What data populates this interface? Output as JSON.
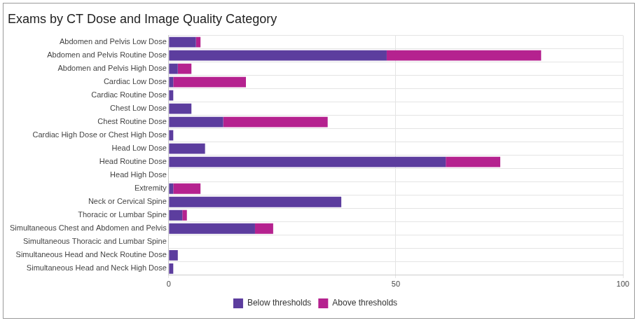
{
  "chart_data": {
    "type": "bar",
    "title": "Exams by CT Dose and Image Quality Category",
    "orientation": "horizontal",
    "stacked": true,
    "grid": true,
    "legend": "bottom",
    "categories": [
      "Abdomen and Pelvis Low Dose",
      "Abdomen and Pelvis Routine Dose",
      "Abdomen and Pelvis High Dose",
      "Cardiac Low Dose",
      "Cardiac Routine Dose",
      "Chest Low Dose",
      "Chest Routine Dose",
      "Cardiac High Dose or Chest High Dose",
      "Head Low Dose",
      "Head Routine Dose",
      "Head High Dose",
      "Extremity",
      "Neck or Cervical Spine",
      "Thoracic or Lumbar Spine",
      "Simultaneous Chest and Abdomen and Pelvis",
      "Simultaneous Thoracic and Lumbar Spine",
      "Simultaneous Head and Neck Routine Dose",
      "Simultaneous Head and Neck High Dose"
    ],
    "series": [
      {
        "name": "Below thresholds",
        "color": "#5c3d9e",
        "values": [
          6,
          48,
          2,
          1,
          1,
          5,
          12,
          1,
          8,
          61,
          0,
          1,
          38,
          3,
          19,
          0,
          2,
          1
        ]
      },
      {
        "name": "Above thresholds",
        "color": "#b5228f",
        "values": [
          1,
          34,
          3,
          16,
          0,
          0,
          23,
          0,
          0,
          12,
          0,
          6,
          0,
          1,
          4,
          0,
          0,
          0
        ]
      }
    ],
    "xlim": [
      0,
      100
    ],
    "xticks": [
      0,
      50,
      100
    ]
  }
}
